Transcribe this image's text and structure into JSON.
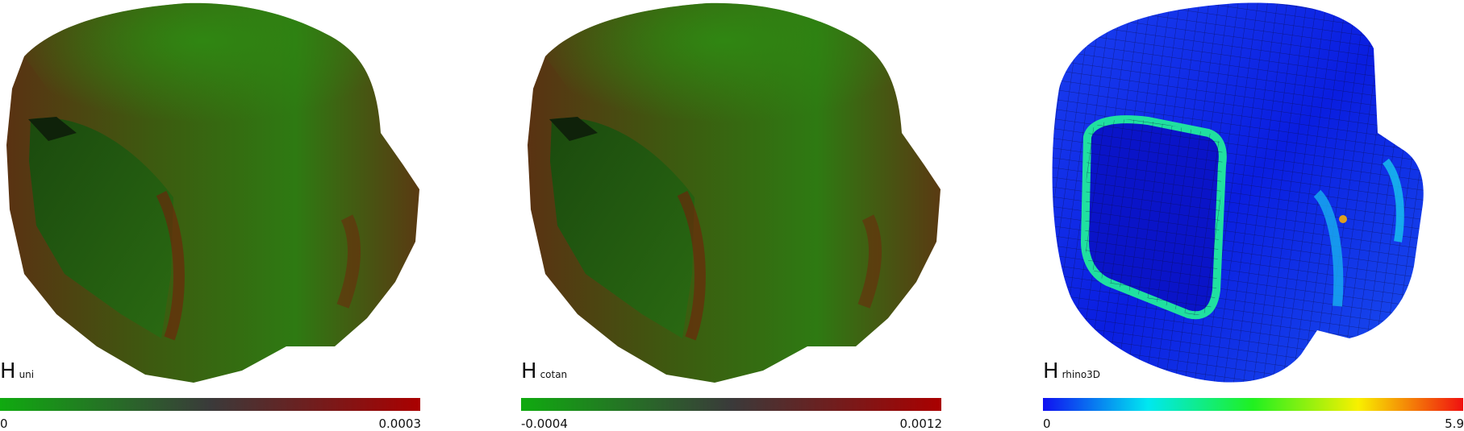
{
  "panels": [
    {
      "id": "uni",
      "label_main": "H",
      "label_sub": "uni",
      "colorbar": {
        "min": "0",
        "max": "0.0003",
        "colors": [
          "#10aa10",
          "#3a3a3a",
          "#aa0000"
        ]
      }
    },
    {
      "id": "cotan",
      "label_main": "H",
      "label_sub": "cotan",
      "colorbar": {
        "min": "-0.0004",
        "max": "0.0012",
        "colors": [
          "#10aa10",
          "#3a3a3a",
          "#aa0000"
        ]
      }
    },
    {
      "id": "rhino3D",
      "label_main": "H",
      "label_sub": "rhino3D",
      "colorbar": {
        "min": "0",
        "max": "5.9",
        "colors": [
          "#1010f0",
          "#00e8f0",
          "#20f020",
          "#f8f000",
          "#f01010"
        ]
      }
    }
  ]
}
